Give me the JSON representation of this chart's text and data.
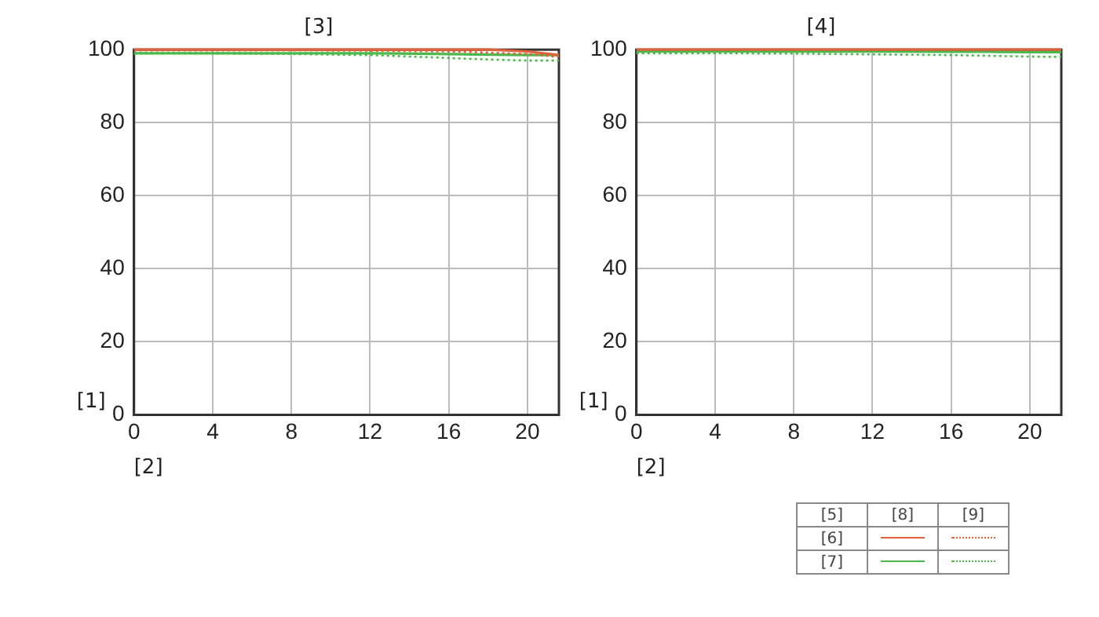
{
  "chart_data": [
    {
      "type": "line",
      "title": "[3]",
      "xlabel": "[2]",
      "ylabel": "[1]",
      "xlim": [
        0,
        21.6
      ],
      "ylim": [
        0,
        100
      ],
      "xticks": [
        0,
        4,
        8,
        12,
        16,
        20
      ],
      "yticks": [
        0,
        20,
        40,
        60,
        80,
        100
      ],
      "grid": true,
      "legend": false,
      "marker": "none",
      "x": [
        0,
        4,
        8,
        12,
        16,
        18,
        20,
        21.6
      ],
      "series": [
        {
          "color": "#e0603a",
          "line_style": "solid",
          "values": [
            100,
            100,
            100,
            100,
            100,
            100,
            99.5,
            98.5
          ]
        },
        {
          "color": "#e0603a",
          "line_style": "dotted",
          "values": [
            99.8,
            99.8,
            99.8,
            99.7,
            99.5,
            99.2,
            98.8,
            98
          ]
        },
        {
          "color": "#4cb84c",
          "line_style": "solid",
          "values": [
            99,
            99,
            99,
            99,
            98.8,
            98.6,
            98.5,
            98.5
          ]
        },
        {
          "color": "#4cb84c",
          "line_style": "dotted",
          "values": [
            99,
            99,
            98.8,
            98.5,
            97.7,
            97.3,
            97,
            97
          ]
        }
      ]
    },
    {
      "type": "line",
      "title": "[4]",
      "xlabel": "[2]",
      "ylabel": "[1]",
      "xlim": [
        0,
        21.6
      ],
      "ylim": [
        0,
        100
      ],
      "xticks": [
        0,
        4,
        8,
        12,
        16,
        20
      ],
      "yticks": [
        0,
        20,
        40,
        60,
        80,
        100
      ],
      "grid": true,
      "legend": false,
      "marker": "none",
      "x": [
        0,
        4,
        8,
        12,
        16,
        18,
        20,
        21.6
      ],
      "annotations": [
        "[5]",
        "[6]",
        "[7]",
        "[8]",
        "[9]"
      ],
      "series": [
        {
          "color": "#e0603a",
          "line_style": "solid",
          "values": [
            100,
            100,
            100,
            100,
            100,
            100,
            100,
            100
          ]
        },
        {
          "color": "#e0603a",
          "line_style": "dotted",
          "values": [
            null,
            null,
            null,
            null,
            null,
            null,
            null,
            null
          ]
        },
        {
          "color": "#4cb84c",
          "line_style": "solid",
          "values": [
            99.5,
            99.5,
            99.5,
            99.5,
            99.4,
            99.4,
            99.3,
            99.3
          ]
        },
        {
          "color": "#4cb84c",
          "line_style": "dotted",
          "values": [
            99,
            99,
            98.9,
            98.7,
            98.5,
            98.3,
            98.1,
            98
          ]
        }
      ]
    }
  ]
}
